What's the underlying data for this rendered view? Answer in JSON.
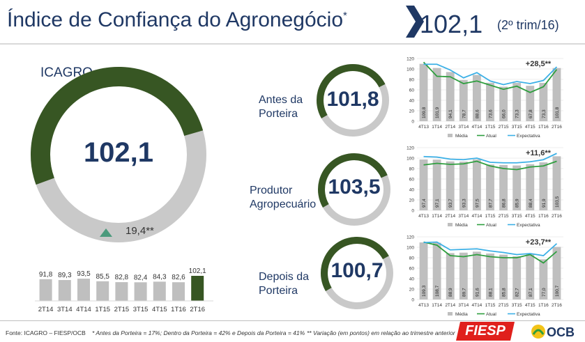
{
  "header": {
    "title": "Índice de Confiança do Agronegócio",
    "title_mark": "*",
    "value": "102,1",
    "period": "(2º trim/16)"
  },
  "main": {
    "label": "ICAGRO",
    "value": "102,1",
    "variation": "19,4",
    "variation_mark": "**",
    "gauge_fraction": 0.511
  },
  "segments": [
    {
      "label_lines": [
        "Antes da",
        "Porteira"
      ],
      "value": "101,8",
      "gauge_fraction": 0.509
    },
    {
      "label_lines": [
        "Produtor",
        "Agropecuário"
      ],
      "value": "103,5",
      "gauge_fraction": 0.518
    },
    {
      "label_lines": [
        "Depois da",
        "Porteira"
      ],
      "value": "100,7",
      "gauge_fraction": 0.504
    }
  ],
  "footer": {
    "source": "Fonte: ICAGRO – FIESP/OCB",
    "weights": "* Antes da Porteira = 17%; Dentro da Porteira = 42% e Depois da Porteira = 41%",
    "variation_note": "** Variação (em pontos) em relação ao trimestre anterior",
    "fiesp_logo": "FIESP",
    "ocb_logo": "OCB"
  },
  "colors": {
    "dark_green": "#375623",
    "gauge_gray": "#c9c9c9",
    "bar_gray": "#bfbfbf",
    "navy": "#1f3864",
    "line_green": "#2e9e3e",
    "line_blue": "#3cb0e6",
    "fiesp_red": "#e0201c",
    "triangle": "#4a9a7c"
  },
  "chart_data": [
    {
      "id": "icagro-history",
      "type": "bar",
      "categories": [
        "2T14",
        "3T14",
        "4T14",
        "1T15",
        "2T15",
        "3T15",
        "4T15",
        "1T16",
        "2T16"
      ],
      "values": [
        91.8,
        89.3,
        93.5,
        85.5,
        82.8,
        82.4,
        84.3,
        82.6,
        102.1
      ],
      "labels": [
        "91,8",
        "89,3",
        "93,5",
        "85,5",
        "82,8",
        "82,4",
        "84,3",
        "82,6",
        "102,1"
      ],
      "highlight_last": true
    },
    {
      "id": "antes-da-porteira",
      "type": "bar+line",
      "categories": [
        "4T13",
        "1T14",
        "2T14",
        "3T14",
        "4T14",
        "1T15",
        "2T15",
        "3T15",
        "4T15",
        "1T16",
        "2T16"
      ],
      "values": [
        109.8,
        101.9,
        94.1,
        78.7,
        88.6,
        73.6,
        66.0,
        73.3,
        67.8,
        73.3,
        101.8
      ],
      "labels": [
        "109,8",
        "101,9",
        "94,1",
        "78,7",
        "88,6",
        "73,6",
        "66,0",
        "73,3",
        "67,8",
        "73,3",
        "101,8"
      ],
      "series": [
        {
          "name": "Atual",
          "values": [
            113,
            86,
            85,
            72,
            77,
            69,
            61,
            67,
            55,
            66,
            99
          ]
        },
        {
          "name": "Expectativa",
          "values": [
            109,
            109,
            98,
            83,
            93,
            77,
            70,
            76,
            72,
            78,
            104
          ]
        }
      ],
      "legend": [
        "Média",
        "Atual",
        "Expectativa"
      ],
      "annotation": "+28,5**",
      "ylim": [
        0,
        120
      ],
      "yticks": [
        0,
        20,
        40,
        60,
        80,
        100,
        120
      ]
    },
    {
      "id": "produtor-agropecuario",
      "type": "bar+line",
      "categories": [
        "4T13",
        "1T14",
        "2T14",
        "3T14",
        "4T14",
        "1T15",
        "2T15",
        "3T15",
        "4T15",
        "1T16",
        "2T16"
      ],
      "values": [
        97.4,
        97.1,
        93.7,
        93.3,
        97.5,
        87.7,
        86.8,
        85.9,
        88.4,
        91.9,
        103.5
      ],
      "labels": [
        "97,4",
        "97,1",
        "93,7",
        "93,3",
        "97,5",
        "87,7",
        "86,8",
        "85,9",
        "88,4",
        "91,9",
        "103,5"
      ],
      "series": [
        {
          "name": "Atual",
          "values": [
            87,
            90,
            88,
            89,
            94,
            85,
            80,
            78,
            83,
            85,
            94
          ]
        },
        {
          "name": "Expectativa",
          "values": [
            103,
            102,
            98,
            97,
            100,
            92,
            91,
            91,
            93,
            97,
            109
          ]
        }
      ],
      "legend": [
        "Média",
        "Atual",
        "Expectativa"
      ],
      "annotation": "+11,6**",
      "ylim": [
        0,
        120
      ],
      "yticks": [
        0,
        20,
        40,
        60,
        80,
        100,
        120
      ]
    },
    {
      "id": "depois-da-porteira",
      "type": "bar+line",
      "categories": [
        "4T13",
        "1T14",
        "2T14",
        "3T14",
        "4T14",
        "1T15",
        "2T15",
        "3T15",
        "4T15",
        "1T16",
        "2T16"
      ],
      "values": [
        109.3,
        108.7,
        88.9,
        89.7,
        91.6,
        88.1,
        85.8,
        82.7,
        87.1,
        77.0,
        100.7
      ],
      "labels": [
        "109,3",
        "108,7",
        "88,9",
        "89,7",
        "91,6",
        "88,1",
        "85,8",
        "82,7",
        "87,1",
        "77,0",
        "100,7"
      ],
      "series": [
        {
          "name": "Atual",
          "values": [
            110,
            104,
            84,
            82,
            86,
            82,
            80,
            80,
            86,
            70,
            92
          ]
        },
        {
          "name": "Expectativa",
          "values": [
            109,
            110,
            95,
            96,
            97,
            93,
            90,
            86,
            88,
            84,
            107
          ]
        }
      ],
      "legend": [
        "Média",
        "Atual",
        "Expectativa"
      ],
      "annotation": "+23,7**",
      "ylim": [
        0,
        120
      ],
      "yticks": [
        0,
        20,
        40,
        60,
        80,
        100,
        120
      ]
    }
  ]
}
